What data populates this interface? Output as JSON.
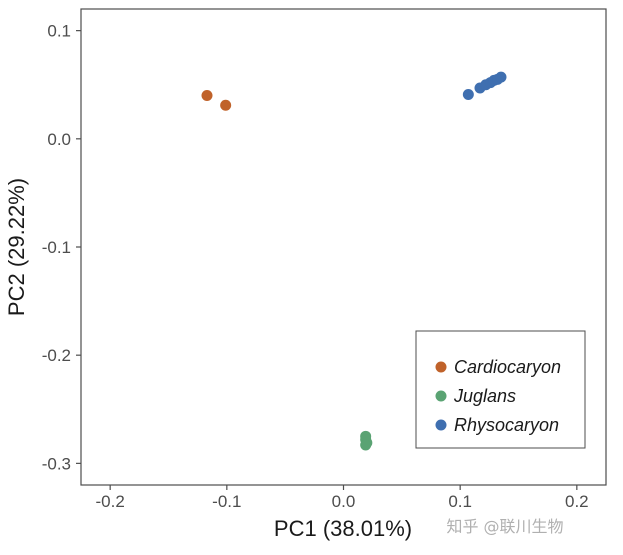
{
  "chart_data": {
    "type": "scatter",
    "title": "",
    "xlabel": "PC1 (38.01%)",
    "ylabel": "PC2 (29.22%)",
    "xlim": [
      -0.225,
      0.225
    ],
    "ylim": [
      -0.32,
      0.12
    ],
    "xticks": [
      -0.2,
      -0.1,
      0.0,
      0.1,
      0.2
    ],
    "xtick_labels": [
      "-0.2",
      "-0.1",
      "0.0",
      "0.1",
      "0.2"
    ],
    "yticks": [
      0.1,
      0.0,
      -0.1,
      -0.2,
      -0.3
    ],
    "ytick_labels": [
      "0.1",
      "0.0",
      "-0.1",
      "-0.2",
      "-0.3"
    ],
    "grid": false,
    "legend_position": "bottom-right",
    "series": [
      {
        "name": "Cardiocaryon",
        "color": "#C0622A",
        "points": [
          [
            -0.117,
            0.04
          ],
          [
            -0.101,
            0.031
          ]
        ]
      },
      {
        "name": "Juglans",
        "color": "#5AA373",
        "points": [
          [
            0.019,
            -0.275
          ],
          [
            0.019,
            -0.278
          ],
          [
            0.02,
            -0.281
          ],
          [
            0.019,
            -0.283
          ]
        ]
      },
      {
        "name": "Rhysocaryon",
        "color": "#3F6FB0",
        "points": [
          [
            0.107,
            0.041
          ],
          [
            0.117,
            0.047
          ],
          [
            0.122,
            0.05
          ],
          [
            0.126,
            0.052
          ],
          [
            0.129,
            0.054
          ],
          [
            0.132,
            0.055
          ],
          [
            0.135,
            0.057
          ]
        ]
      }
    ]
  },
  "watermark": "知乎 @联川生物"
}
